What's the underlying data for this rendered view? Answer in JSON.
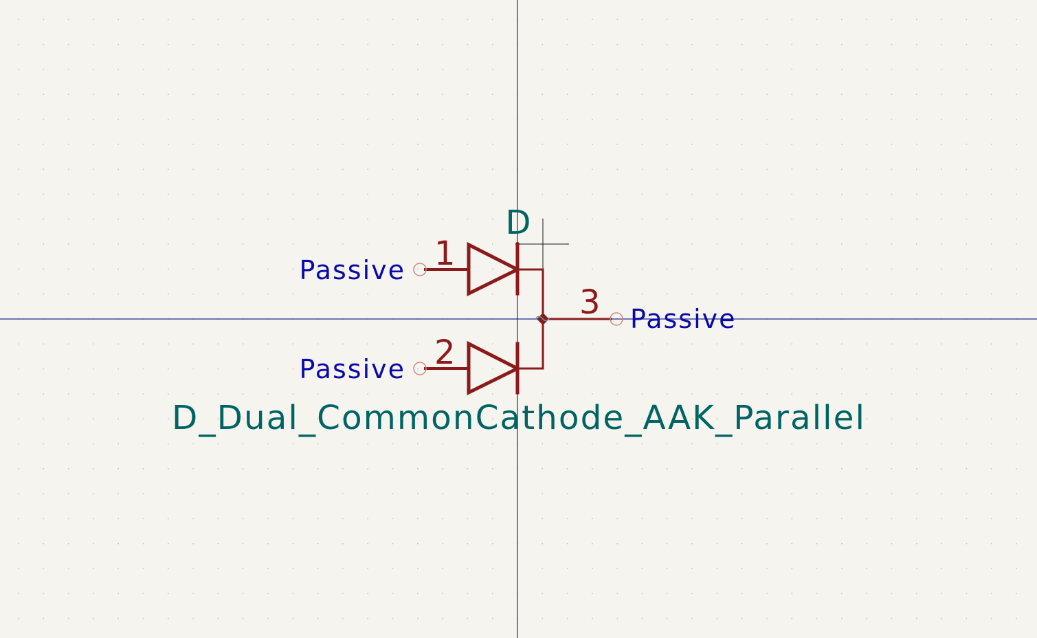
{
  "colors": {
    "background": "#f5f4ef",
    "grid_dot": "#c9c8c0",
    "axis": "#1a2a8a",
    "body": "#8b1a1a",
    "field_text": "#006464",
    "pin_type_text": "#0a0aa8",
    "pin_end": "#c98a8a",
    "anchor": "#1a1a1a"
  },
  "symbol": {
    "reference": "D",
    "value": "D_Dual_CommonCathode_AAK_Parallel"
  },
  "pins": [
    {
      "number": "1",
      "type": "Passive",
      "icon": "pin-end-circle-icon"
    },
    {
      "number": "2",
      "type": "Passive",
      "icon": "pin-end-circle-icon"
    },
    {
      "number": "3",
      "type": "Passive",
      "icon": "pin-end-circle-icon"
    }
  ]
}
